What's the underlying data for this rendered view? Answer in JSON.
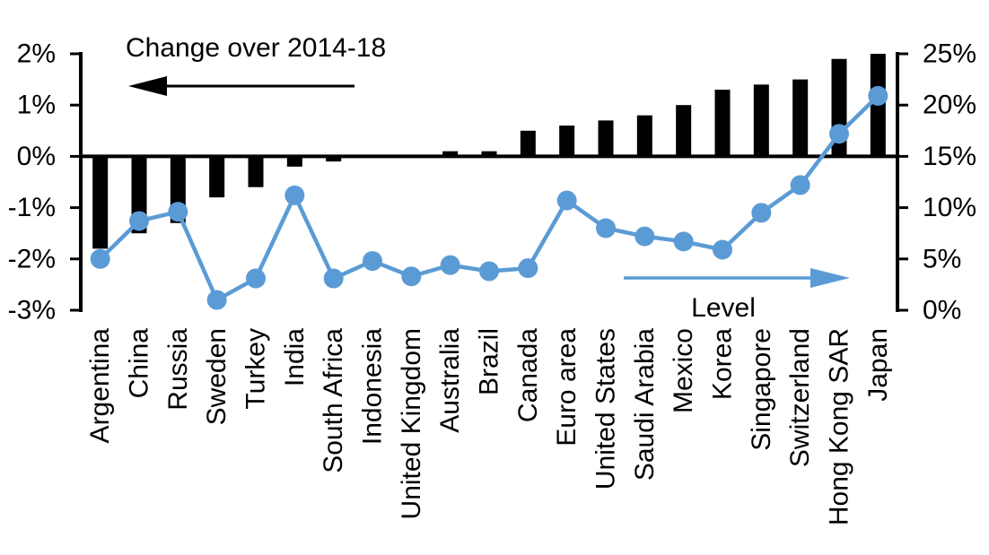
{
  "chart_data": {
    "type": "combo",
    "categories": [
      "Argentina",
      "China",
      "Russia",
      "Sweden",
      "Turkey",
      "India",
      "South Africa",
      "Indonesia",
      "United Kingdom",
      "Australia",
      "Brazil",
      "Canada",
      "Euro area",
      "United States",
      "Saudi Arabia",
      "Mexico",
      "Korea",
      "Singapore",
      "Switzerland",
      "Hong Kong SAR",
      "Japan"
    ],
    "series": [
      {
        "name": "Change over 2014-18",
        "type": "bar",
        "axis": "left",
        "unit": "percentage points",
        "color": "#000000",
        "values": [
          -1.8,
          -1.5,
          -1.3,
          -0.8,
          -0.6,
          -0.2,
          -0.1,
          0.0,
          0.0,
          0.1,
          0.1,
          0.5,
          0.6,
          0.7,
          0.8,
          1.0,
          1.3,
          1.4,
          1.5,
          1.9,
          2.0
        ]
      },
      {
        "name": "Level",
        "type": "line",
        "axis": "right",
        "unit": "%",
        "color": "#5B9BD5",
        "values": [
          5.0,
          8.7,
          9.6,
          1.0,
          3.1,
          11.2,
          3.1,
          4.8,
          3.3,
          4.4,
          3.8,
          4.1,
          10.7,
          8.0,
          7.2,
          6.7,
          5.9,
          9.5,
          12.2,
          17.2,
          20.9
        ]
      }
    ],
    "left_axis": {
      "tick_labels": [
        "2%",
        "1%",
        "0%",
        "-1%",
        "-2%",
        "-3%"
      ],
      "tick_values": [
        2,
        1,
        0,
        -1,
        -2,
        -3
      ],
      "range": [
        -3,
        2
      ]
    },
    "right_axis": {
      "tick_labels": [
        "25%",
        "20%",
        "15%",
        "10%",
        "5%",
        "0%"
      ],
      "tick_values": [
        25,
        20,
        15,
        10,
        5,
        0
      ],
      "range": [
        0,
        25
      ]
    },
    "annotations": [
      {
        "text": "Change over 2014-18",
        "arrow_direction": "left",
        "arrow_color": "#000000",
        "text_color": "#000000"
      },
      {
        "text": "Level",
        "arrow_direction": "right",
        "arrow_color": "#5B9BD5",
        "text_color": "#000000"
      }
    ],
    "grid": false,
    "legend_position": "none",
    "zero_line": true
  },
  "colors": {
    "background": "#FFFFFF",
    "bar": "#000000",
    "line": "#5B9BD5",
    "axis": "#000000"
  }
}
